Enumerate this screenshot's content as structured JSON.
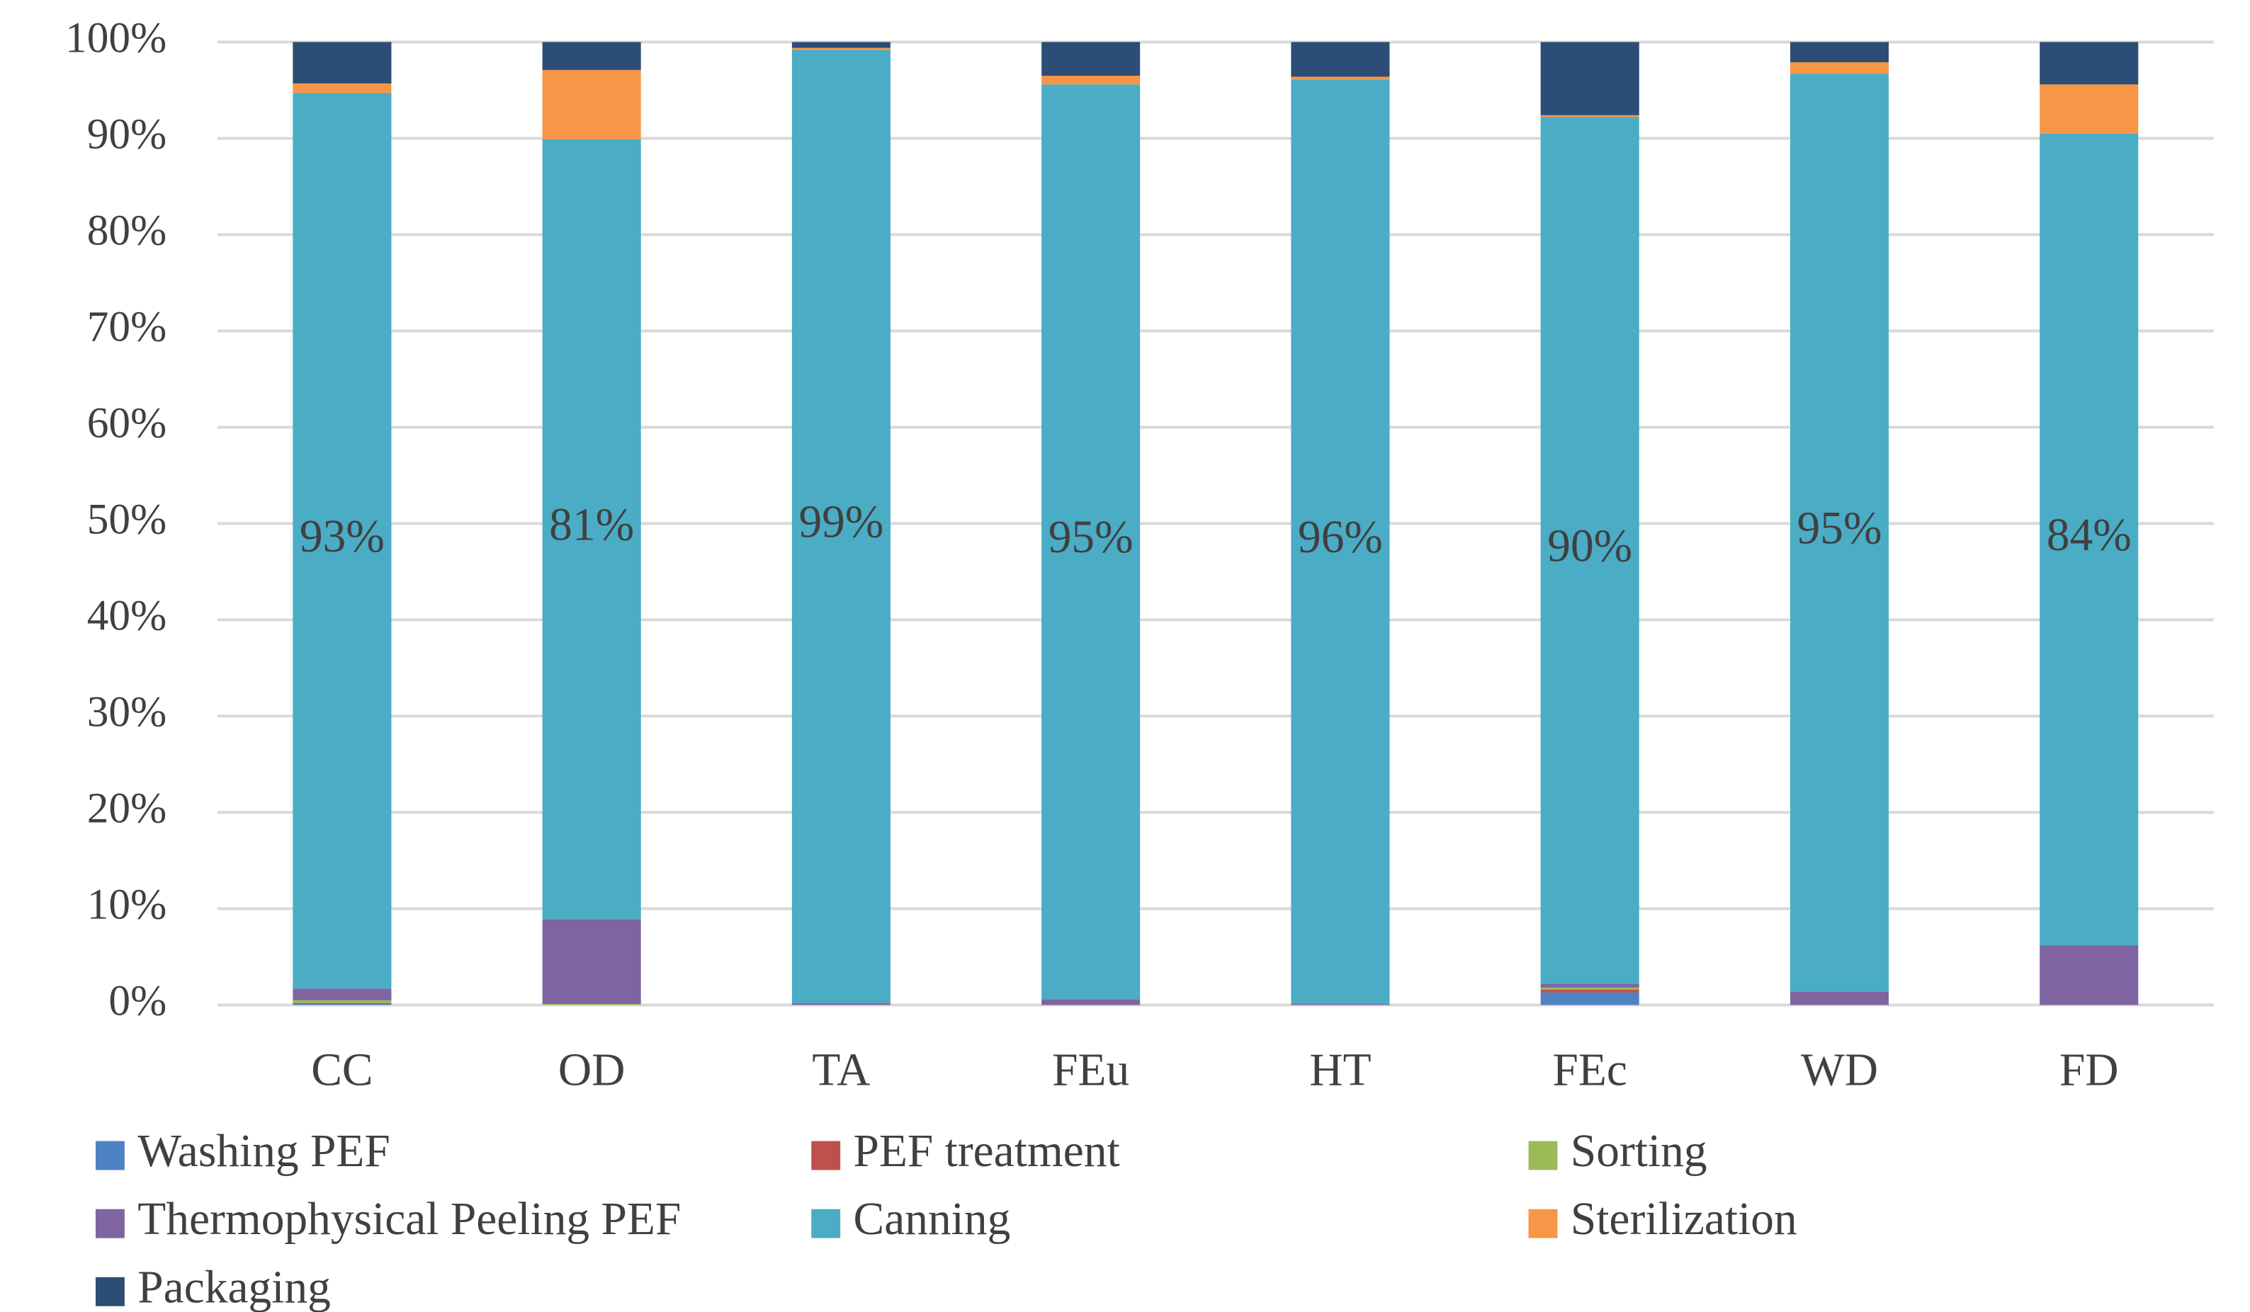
{
  "chart_data": {
    "type": "stacked_bar",
    "categories": [
      "CC",
      "OD",
      "TA",
      "FEu",
      "HT",
      "FEc",
      "WD",
      "FD"
    ],
    "series": [
      {
        "name": "Washing PEF",
        "color": "#4f81c5",
        "values": [
          0.1,
          0,
          0,
          0,
          0,
          1.3,
          0,
          0
        ]
      },
      {
        "name": "PEF treatment",
        "color": "#c0504d",
        "values": [
          0.1,
          0,
          0,
          0,
          0,
          0.3,
          0,
          0
        ]
      },
      {
        "name": "Sorting",
        "color": "#9bbb59",
        "values": [
          0.3,
          0.1,
          0,
          0,
          0,
          0.2,
          0,
          0
        ]
      },
      {
        "name": "Thermophysical Peeling PEF",
        "color": "#8064a2",
        "values": [
          1.2,
          8.8,
          0.2,
          0.6,
          0.1,
          0.4,
          1.4,
          6.2
        ]
      },
      {
        "name": "Canning",
        "color": "#4bacc6",
        "values": [
          93,
          81,
          99,
          95,
          96,
          90,
          95.3,
          84.3
        ],
        "value_labels": [
          "93%",
          "81%",
          "99%",
          "95%",
          "96%",
          "90%",
          "95%",
          "84%"
        ]
      },
      {
        "name": "Sterilization",
        "color": "#f79646",
        "values": [
          1.0,
          7.2,
          0.2,
          0.9,
          0.3,
          0.2,
          1.2,
          5.1
        ]
      },
      {
        "name": "Packaging",
        "color": "#2c4d75",
        "values": [
          4.3,
          2.9,
          0.6,
          3.5,
          3.6,
          7.6,
          2.1,
          4.4
        ]
      }
    ],
    "ylim": [
      0,
      100
    ],
    "yticks": [
      {
        "value": 0,
        "label": "0%"
      },
      {
        "value": 10,
        "label": "10%"
      },
      {
        "value": 20,
        "label": "20%"
      },
      {
        "value": 30,
        "label": "30%"
      },
      {
        "value": 40,
        "label": "40%"
      },
      {
        "value": 50,
        "label": "50%"
      },
      {
        "value": 60,
        "label": "60%"
      },
      {
        "value": 70,
        "label": "70%"
      },
      {
        "value": 80,
        "label": "80%"
      },
      {
        "value": 90,
        "label": "90%"
      },
      {
        "value": 100,
        "label": "100%"
      }
    ],
    "grid": true
  }
}
